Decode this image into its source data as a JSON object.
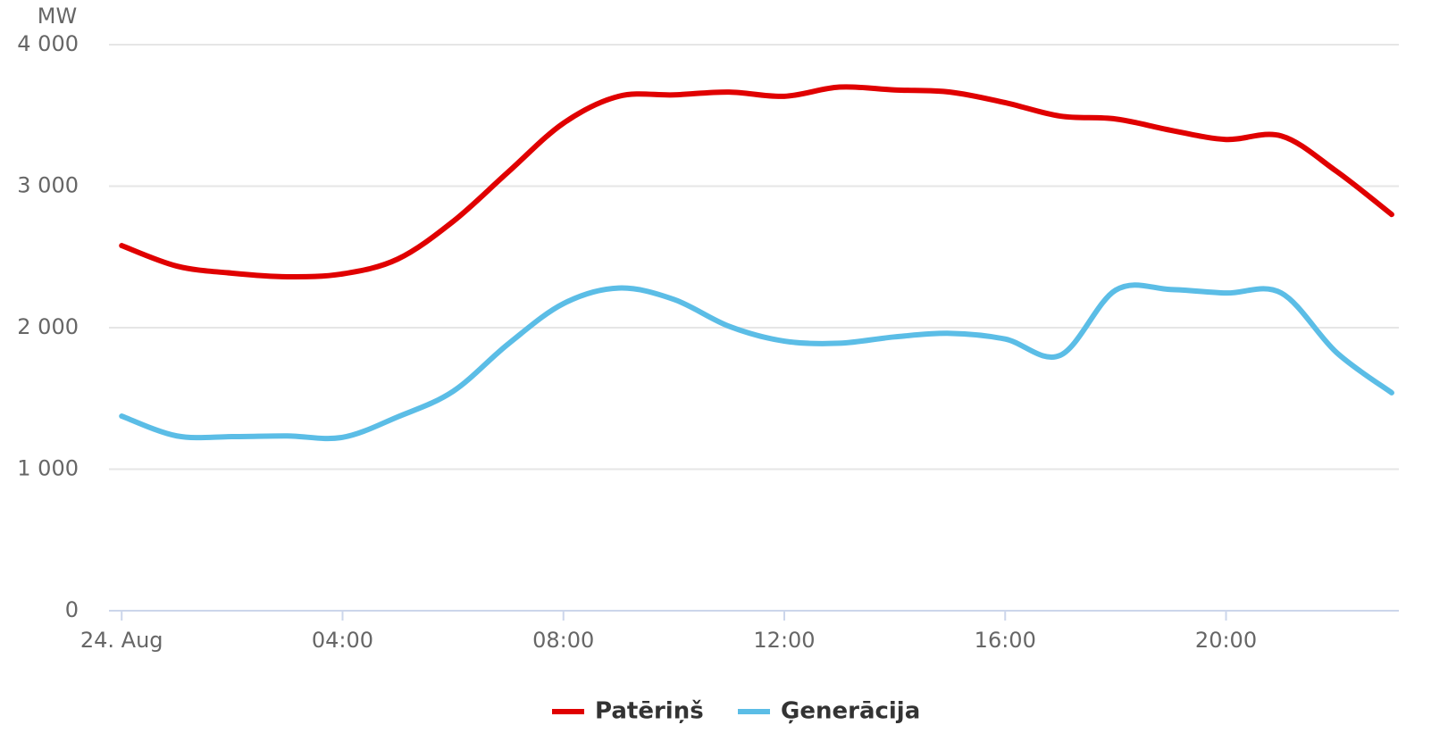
{
  "chart_data": {
    "type": "line",
    "y_axis_title": "MW",
    "x": [
      0,
      1,
      2,
      3,
      4,
      5,
      6,
      7,
      8,
      9,
      10,
      11,
      12,
      13,
      14,
      15,
      16,
      17,
      18,
      19,
      20,
      21,
      22,
      23
    ],
    "xlim": [
      -0.23,
      23.13
    ],
    "xticks": [
      {
        "value": 0,
        "label": "24. Aug"
      },
      {
        "value": 4,
        "label": "04:00"
      },
      {
        "value": 8,
        "label": "08:00"
      },
      {
        "value": 12,
        "label": "12:00"
      },
      {
        "value": 16,
        "label": "16:00"
      },
      {
        "value": 20,
        "label": "20:00"
      }
    ],
    "ylim": [
      0,
      4000
    ],
    "yticks": [
      0,
      {
        "value": 1000,
        "label": "1 000"
      },
      {
        "value": 2000,
        "label": "2 000"
      },
      {
        "value": 3000,
        "label": "3 000"
      },
      {
        "value": 4000,
        "label": "4 000"
      }
    ],
    "grid": true,
    "legend": "bottom",
    "series": [
      {
        "name": "Patēriņš",
        "color": "#e00000",
        "values": [
          2580,
          2435,
          2385,
          2360,
          2380,
          2485,
          2750,
          3100,
          3445,
          3635,
          3645,
          3665,
          3635,
          3700,
          3680,
          3665,
          3590,
          3495,
          3475,
          3395,
          3330,
          3355,
          3105,
          2800
        ]
      },
      {
        "name": "Ģenerācija",
        "color": "#5bbde6",
        "values": [
          1375,
          1235,
          1230,
          1235,
          1225,
          1370,
          1550,
          1885,
          2170,
          2280,
          2200,
          2010,
          1905,
          1890,
          1935,
          1960,
          1920,
          1805,
          2265,
          2270,
          2245,
          2245,
          1825,
          1540
        ]
      }
    ]
  }
}
